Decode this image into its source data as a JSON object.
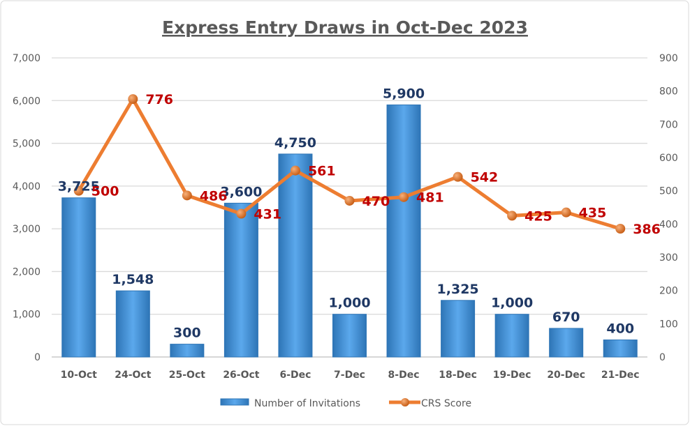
{
  "chart_data": {
    "type": "bar+line",
    "title": "Express Entry Draws in Oct-Dec 2023",
    "categories": [
      "10-Oct",
      "24-Oct",
      "25-Oct",
      "26-Oct",
      "6-Dec",
      "7-Dec",
      "8-Dec",
      "18-Dec",
      "19-Dec",
      "20-Dec",
      "21-Dec"
    ],
    "series": [
      {
        "name": "Number of Invitations",
        "type": "bar",
        "axis": "left",
        "values": [
          3725,
          1548,
          300,
          3600,
          4750,
          1000,
          5900,
          1325,
          1000,
          670,
          400
        ],
        "labels": [
          "3,725",
          "1,548",
          "300",
          "3,600",
          "4,750",
          "1,000",
          "5,900",
          "1,325",
          "1,000",
          "670",
          "400"
        ],
        "color": "#3B8FD9",
        "label_color": "#1F3864"
      },
      {
        "name": "CRS Score",
        "type": "line",
        "axis": "right",
        "values": [
          500,
          776,
          486,
          431,
          561,
          470,
          481,
          542,
          425,
          435,
          386
        ],
        "labels": [
          "500",
          "776",
          "486",
          "431",
          "561",
          "470",
          "481",
          "542",
          "425",
          "435",
          "386"
        ],
        "color": "#ED7D31",
        "label_color": "#C00000"
      }
    ],
    "y_left": {
      "lim": [
        0,
        7000
      ],
      "ticks": [
        "0",
        "1,000",
        "2,000",
        "3,000",
        "4,000",
        "5,000",
        "6,000",
        "7,000"
      ]
    },
    "y_right": {
      "lim": [
        0,
        900
      ],
      "ticks": [
        "0",
        "100",
        "200",
        "300",
        "400",
        "500",
        "600",
        "700",
        "800",
        "900"
      ]
    },
    "grid": true,
    "legend": "bottom"
  }
}
